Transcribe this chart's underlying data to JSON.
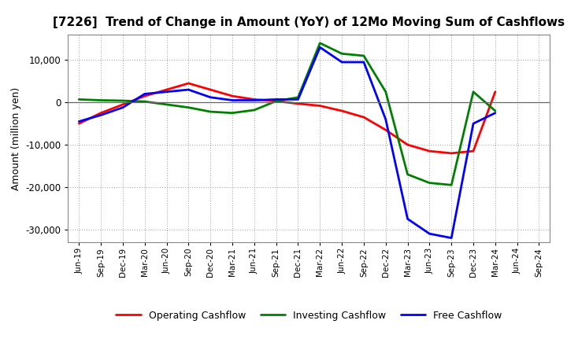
{
  "title": "[7226]  Trend of Change in Amount (YoY) of 12Mo Moving Sum of Cashflows",
  "ylabel": "Amount (million yen)",
  "x_labels": [
    "Jun-19",
    "Sep-19",
    "Dec-19",
    "Mar-20",
    "Jun-20",
    "Sep-20",
    "Dec-20",
    "Mar-21",
    "Jun-21",
    "Sep-21",
    "Dec-21",
    "Mar-22",
    "Jun-22",
    "Sep-22",
    "Dec-22",
    "Mar-23",
    "Jun-23",
    "Sep-23",
    "Dec-23",
    "Mar-24",
    "Jun-24",
    "Sep-24"
  ],
  "operating_cashflow": [
    -5000,
    -2500,
    -500,
    1500,
    3000,
    4500,
    3000,
    1500,
    700,
    300,
    -300,
    -800,
    -2000,
    -3500,
    -6500,
    -10000,
    -11500,
    -12000,
    -11500,
    2500,
    null,
    null
  ],
  "investing_cashflow": [
    700,
    500,
    400,
    200,
    -500,
    -1200,
    -2200,
    -2500,
    -1800,
    300,
    1200,
    14000,
    11500,
    11000,
    2500,
    -17000,
    -19000,
    -19500,
    2500,
    -2000,
    null,
    null
  ],
  "free_cashflow": [
    -4500,
    -3000,
    -1200,
    2000,
    2500,
    3000,
    1200,
    500,
    500,
    700,
    700,
    13000,
    9500,
    9500,
    -4000,
    -27500,
    -31000,
    -32000,
    -5000,
    -2500,
    null,
    null
  ],
  "operating_color": "#ff0000",
  "investing_color": "#008000",
  "free_color": "#0000ff",
  "ylim": [
    -33000,
    16000
  ],
  "yticks": [
    -30000,
    -20000,
    -10000,
    0,
    10000
  ],
  "background_color": "#ffffff",
  "grid_color": "#999999",
  "legend_labels": [
    "Operating Cashflow",
    "Investing Cashflow",
    "Free Cashflow"
  ]
}
